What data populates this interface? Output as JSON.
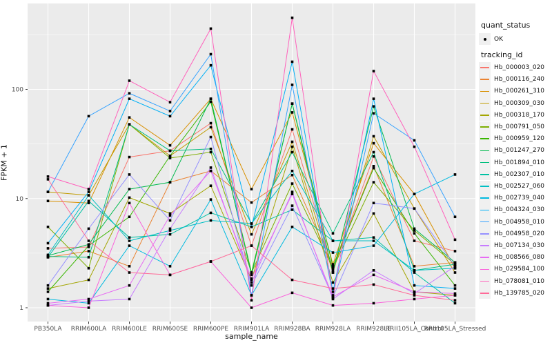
{
  "chart_data": {
    "type": "line",
    "title": "",
    "xlabel": "sample_name",
    "ylabel": "FPKM + 1",
    "y_scale": "log10",
    "y_ticks": [
      "1",
      "10",
      "100"
    ],
    "y_tick_values": [
      1,
      10,
      100
    ],
    "ylim": [
      0.95,
      600
    ],
    "grid": true,
    "legend_position": "right",
    "point_shape": "black-square",
    "categories": [
      "PB350LA",
      "RRIM600LA",
      "RRIM600LE",
      "RRIM600SE",
      "RRIM600PE",
      "RRIM901LA",
      "RRIM928BA",
      "RRIM928LA",
      "RRIM928LE",
      "RRII105LA_Control",
      "RRII105LA_Stressed"
    ],
    "series": [
      {
        "name": "Hb_000003_020",
        "color": "#F8766D",
        "values": [
          3.5,
          3.6,
          24.0,
          27.4,
          49.0,
          3.7,
          43.0,
          2.2,
          24.3,
          4.1,
          3.3
        ]
      },
      {
        "name": "Hb_000116_240",
        "color": "#EA8331",
        "values": [
          2.9,
          3.3,
          2.4,
          14.1,
          17.9,
          9.2,
          16.4,
          2.4,
          19.8,
          2.4,
          2.6
        ]
      },
      {
        "name": "Hb_000261_310",
        "color": "#D89000",
        "values": [
          9.5,
          9.1,
          55.3,
          30.7,
          82.0,
          12.2,
          61.5,
          2.5,
          32.1,
          11.0,
          2.3
        ]
      },
      {
        "name": "Hb_000309_030",
        "color": "#C09B00",
        "values": [
          11.5,
          10.7,
          47.8,
          24.6,
          45.0,
          4.7,
          33.1,
          2.1,
          37.2,
          8.1,
          2.1
        ]
      },
      {
        "name": "Hb_000318_170",
        "color": "#A3A500",
        "values": [
          1.5,
          1.8,
          10.2,
          7.3,
          13.1,
          1.8,
          29.8,
          1.7,
          7.3,
          1.4,
          1.3
        ]
      },
      {
        "name": "Hb_000791_050",
        "color": "#7CAE00",
        "values": [
          5.5,
          2.3,
          47.8,
          23.5,
          26.6,
          2.1,
          13.7,
          2.3,
          14.1,
          5.1,
          2.5
        ]
      },
      {
        "name": "Hb_000959_120",
        "color": "#39B600",
        "values": [
          1.4,
          3.7,
          6.8,
          24.6,
          77.0,
          2.1,
          74.0,
          2.4,
          19.0,
          4.8,
          1.6
        ]
      },
      {
        "name": "Hb_001247_270",
        "color": "#00BB4E",
        "values": [
          3.0,
          3.8,
          12.2,
          14.1,
          82.0,
          2.0,
          74.0,
          2.1,
          69.8,
          5.3,
          2.6
        ]
      },
      {
        "name": "Hb_001894_010",
        "color": "#00BF7D",
        "values": [
          2.95,
          2.9,
          47.8,
          27.4,
          28.5,
          5.9,
          26.6,
          4.8,
          26.6,
          2.2,
          2.5
        ]
      },
      {
        "name": "Hb_002307_010",
        "color": "#00C1A3",
        "values": [
          2.9,
          9.5,
          4.4,
          4.7,
          7.4,
          5.5,
          7.9,
          4.1,
          4.4,
          2.1,
          1.1
        ]
      },
      {
        "name": "Hb_002527_060",
        "color": "#00BFC4",
        "values": [
          3.05,
          10.7,
          4.1,
          5.1,
          6.3,
          5.9,
          17.9,
          4.1,
          4.1,
          2.2,
          2.3
        ]
      },
      {
        "name": "Hb_002739_040",
        "color": "#00BAE0",
        "values": [
          1.2,
          1.1,
          3.7,
          2.4,
          9.8,
          1.3,
          5.5,
          3.2,
          3.7,
          11.0,
          16.6
        ]
      },
      {
        "name": "Hb_004324_030",
        "color": "#00B0F6",
        "values": [
          3.9,
          11.5,
          82.0,
          56.8,
          166.0,
          5.5,
          179.0,
          1.4,
          82.0,
          1.6,
          1.5
        ]
      },
      {
        "name": "Hb_004958_010",
        "color": "#35A2FF",
        "values": [
          11.5,
          56.8,
          92.0,
          63.3,
          210.0,
          1.3,
          110.0,
          1.3,
          60.3,
          34.1,
          6.8
        ]
      },
      {
        "name": "Hb_004958_020",
        "color": "#9590FF",
        "values": [
          1.6,
          5.3,
          16.6,
          6.3,
          36.6,
          1.6,
          8.6,
          1.25,
          9.1,
          8.1,
          2.4
        ]
      },
      {
        "name": "Hb_007134_030",
        "color": "#C77CFF",
        "values": [
          1.05,
          1.15,
          1.2,
          5.3,
          19.2,
          1.7,
          11.5,
          1.2,
          2.2,
          1.35,
          2.4
        ]
      },
      {
        "name": "Hb_008566_080",
        "color": "#E76BF3",
        "values": [
          1.1,
          1.2,
          1.6,
          7.0,
          17.9,
          1.85,
          11.0,
          1.26,
          2.0,
          1.4,
          1.35
        ]
      },
      {
        "name": "Hb_029584_100",
        "color": "#FA62DB",
        "values": [
          1.05,
          1.0,
          9.1,
          2.0,
          2.65,
          1.0,
          1.37,
          1.05,
          1.1,
          1.2,
          1.3
        ]
      },
      {
        "name": "Hb_078081_010",
        "color": "#FF62BC",
        "values": [
          15.9,
          12.2,
          120.0,
          76.3,
          360.0,
          1.17,
          452.0,
          1.22,
          147.0,
          29.8,
          4.2
        ]
      },
      {
        "name": "Hb_139785_020",
        "color": "#FF6A98",
        "values": [
          15.0,
          4.1,
          2.1,
          2.0,
          2.65,
          3.7,
          1.8,
          1.5,
          1.63,
          1.3,
          1.17
        ]
      }
    ],
    "legend": {
      "quant_status_title": "quant_status",
      "quant_status_items": [
        {
          "label": "OK"
        }
      ],
      "tracking_id_title": "tracking_id"
    }
  },
  "colors": {
    "panel_bg": "#EBEBEB",
    "grid": "#FFFFFF",
    "axis_text": "#4D4D4D",
    "tick_mark": "#333333",
    "point": "#000000",
    "legend_key_bg": "#F0F0F0"
  }
}
